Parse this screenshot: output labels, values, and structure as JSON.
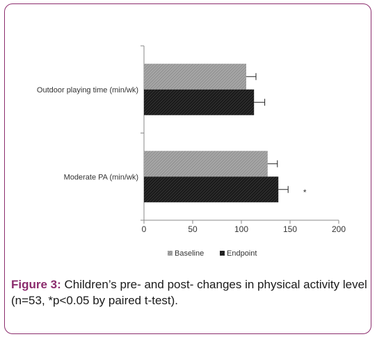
{
  "chart_data": {
    "type": "bar",
    "orientation": "horizontal",
    "categories": [
      "Outdoor playing time (min/wk)",
      "Moderate PA (min/wk)"
    ],
    "series": [
      {
        "name": "Baseline",
        "values": [
          105,
          127
        ],
        "errors": [
          10,
          10
        ],
        "color": "#9a9a9a"
      },
      {
        "name": "Endpoint",
        "values": [
          113,
          138
        ],
        "errors": [
          11,
          10
        ],
        "color": "#1e1e1e"
      }
    ],
    "annotations": [
      {
        "category": "Moderate PA (min/wk)",
        "series": "Endpoint",
        "text": "*"
      }
    ],
    "xlim": [
      0,
      200
    ],
    "xticks": [
      "0",
      "50",
      "100",
      "150",
      "200"
    ],
    "legend_position": "bottom",
    "grid": false
  },
  "caption": {
    "label": "Figure 3:",
    "text": " Children’s pre- and post- changes in physical activity level (n=53, *p<0.05 by paired t-test)."
  }
}
